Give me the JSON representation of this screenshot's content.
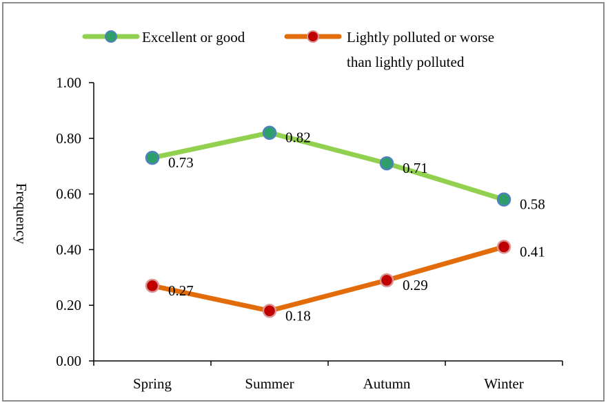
{
  "chart_data": {
    "type": "line",
    "categories": [
      "Spring",
      "Summer",
      "Autumn",
      "Winter"
    ],
    "series": [
      {
        "name": "Excellent or good",
        "values": [
          0.73,
          0.82,
          0.71,
          0.58
        ],
        "data_labels": [
          "0.73",
          "0.82",
          "0.71",
          "0.58"
        ],
        "line_color": "#92d050",
        "marker_color": "#2e9e6b",
        "marker_edge": "#4f81bd"
      },
      {
        "name": "Lightly polluted or worse than lightly polluted",
        "name_lines": [
          "Lightly polluted or worse",
          "than lightly polluted"
        ],
        "values": [
          0.27,
          0.18,
          0.29,
          0.41
        ],
        "data_labels": [
          "0.27",
          "0.18",
          "0.29",
          "0.41"
        ],
        "line_color": "#e36c0a",
        "marker_color": "#c00000",
        "marker_edge": "#d99694"
      }
    ],
    "ylabel": "Frequency",
    "xlabel": "",
    "ylim": [
      0,
      1
    ],
    "yticks": [
      "0.00",
      "0.20",
      "0.40",
      "0.60",
      "0.80",
      "1.00"
    ],
    "ytick_values": [
      0,
      0.2,
      0.4,
      0.6,
      0.8,
      1.0
    ],
    "grid": false,
    "legend_position": "top"
  }
}
